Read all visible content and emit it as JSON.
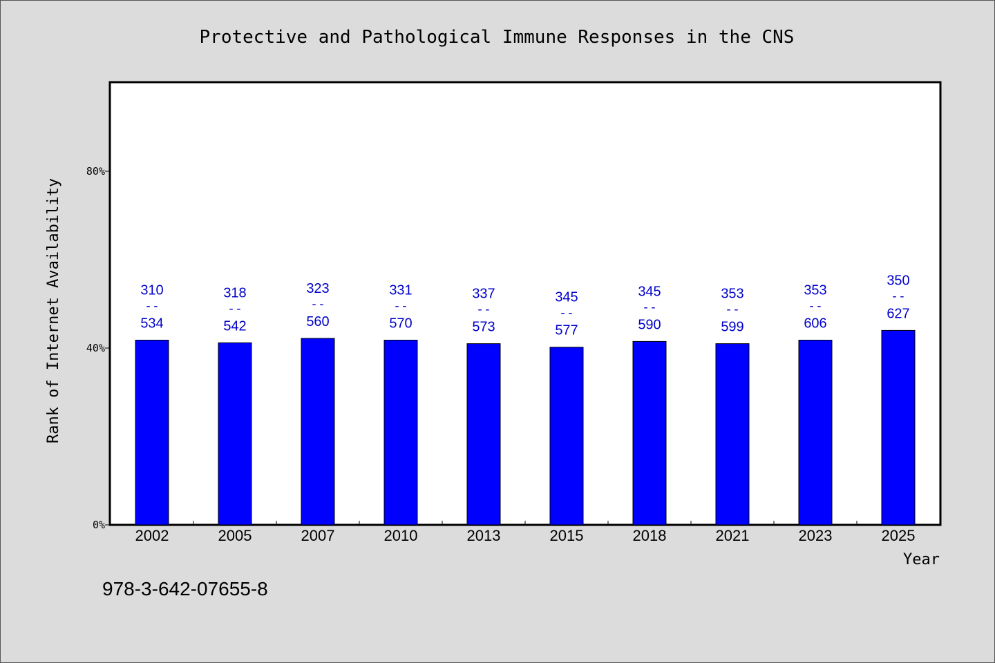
{
  "chart_data": {
    "type": "bar",
    "title": "Protective and Pathological Immune Responses in the CNS",
    "xlabel": "Year",
    "ylabel": "Rank of Internet Availability",
    "categories": [
      "2002",
      "2005",
      "2007",
      "2010",
      "2013",
      "2015",
      "2018",
      "2021",
      "2023",
      "2025"
    ],
    "values": [
      41.8,
      41.2,
      42.2,
      41.8,
      41.0,
      40.2,
      41.5,
      41.0,
      41.8,
      44.0
    ],
    "labels_top": [
      "310",
      "318",
      "323",
      "331",
      "337",
      "345",
      "345",
      "353",
      "353",
      "350"
    ],
    "labels_bottom": [
      "534",
      "542",
      "560",
      "570",
      "573",
      "577",
      "590",
      "599",
      "606",
      "627"
    ],
    "label_separator": "--",
    "ylim": [
      0,
      100
    ],
    "yticks": [
      0,
      40,
      80
    ],
    "ytick_labels": [
      "0%",
      "40%",
      "80%"
    ],
    "bar_color": "#0000ff",
    "label_color": "#0000cc",
    "grid": false,
    "footnote": "978-3-642-07655-8"
  }
}
